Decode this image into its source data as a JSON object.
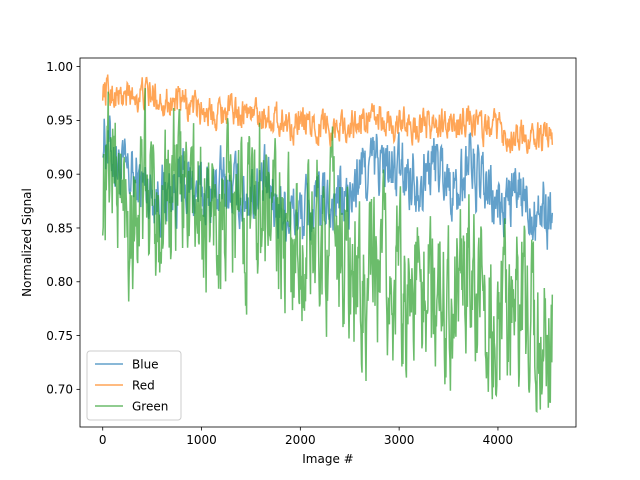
{
  "chart_data": {
    "type": "line",
    "title": "",
    "xlabel": "Image #",
    "ylabel": "Normalized Signal",
    "xlim": [
      -230,
      4790
    ],
    "ylim": [
      0.665,
      1.008
    ],
    "xticks": [
      0,
      1000,
      2000,
      3000,
      4000
    ],
    "yticks": [
      0.7,
      0.75,
      0.8,
      0.85,
      0.9,
      0.95,
      1.0
    ],
    "xtick_labels": [
      "0",
      "1000",
      "2000",
      "3000",
      "4000"
    ],
    "ytick_labels": [
      "0.70",
      "0.75",
      "0.80",
      "0.85",
      "0.90",
      "0.95",
      "1.00"
    ],
    "grid": false,
    "legend_position": "lower-left",
    "x": [
      0,
      100,
      200,
      400,
      600,
      800,
      1000,
      1200,
      1400,
      1600,
      1800,
      2000,
      2200,
      2400,
      2500,
      2600,
      2800,
      3000,
      3200,
      3400,
      3600,
      3700,
      3800,
      4000,
      4200,
      4400,
      4550
    ],
    "series": [
      {
        "name": "Blue",
        "color": "#1f77b4",
        "values": [
          0.94,
          0.92,
          0.9,
          0.89,
          0.88,
          0.89,
          0.88,
          0.89,
          0.88,
          0.89,
          0.87,
          0.86,
          0.87,
          0.88,
          0.87,
          0.9,
          0.91,
          0.9,
          0.9,
          0.91,
          0.88,
          0.92,
          0.89,
          0.87,
          0.88,
          0.87,
          0.86
        ],
        "noise": 0.025
      },
      {
        "name": "Red",
        "color": "#ff7f0e",
        "values": [
          0.98,
          0.975,
          0.97,
          0.975,
          0.97,
          0.965,
          0.96,
          0.96,
          0.96,
          0.955,
          0.95,
          0.945,
          0.945,
          0.945,
          0.945,
          0.948,
          0.95,
          0.945,
          0.945,
          0.945,
          0.945,
          0.955,
          0.945,
          0.94,
          0.935,
          0.935,
          0.93
        ],
        "noise": 0.012
      },
      {
        "name": "Green",
        "color": "#2ca02c",
        "values": [
          0.9,
          0.92,
          0.87,
          0.88,
          0.87,
          0.89,
          0.86,
          0.86,
          0.86,
          0.89,
          0.84,
          0.83,
          0.84,
          0.84,
          0.8,
          0.79,
          0.8,
          0.8,
          0.79,
          0.79,
          0.8,
          0.82,
          0.79,
          0.76,
          0.76,
          0.76,
          0.75
        ],
        "noise": 0.06
      }
    ]
  }
}
